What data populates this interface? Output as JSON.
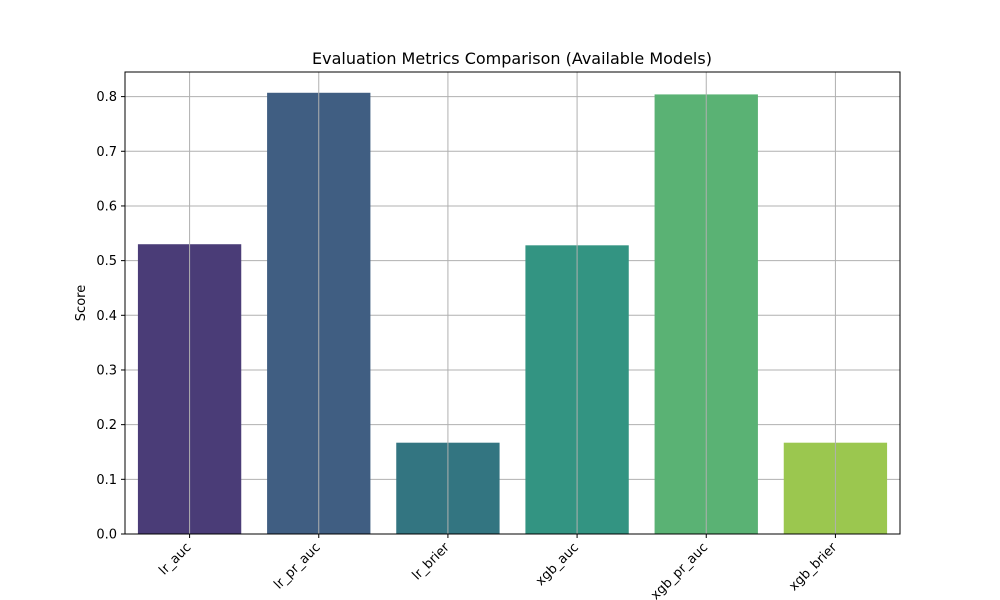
{
  "chart_data": {
    "type": "bar",
    "title": "Evaluation Metrics Comparison (Available Models)",
    "xlabel": "",
    "ylabel": "Score",
    "categories": [
      "lr_auc",
      "lr_pr_auc",
      "lr_brier",
      "xgb_auc",
      "xgb_pr_auc",
      "xgb_brier"
    ],
    "values": [
      0.53,
      0.807,
      0.167,
      0.528,
      0.804,
      0.167
    ],
    "colors": [
      "#4a3c77",
      "#405e82",
      "#337581",
      "#339482",
      "#5ab274",
      "#9bc74f"
    ],
    "ylim": [
      0,
      0.845
    ],
    "yticks": [
      0.0,
      0.1,
      0.2,
      0.3,
      0.4,
      0.5,
      0.6,
      0.7,
      0.8
    ],
    "ytick_labels": [
      "0.0",
      "0.1",
      "0.2",
      "0.3",
      "0.4",
      "0.5",
      "0.6",
      "0.7",
      "0.8"
    ],
    "grid": true,
    "xtick_rotation_deg": 45
  }
}
